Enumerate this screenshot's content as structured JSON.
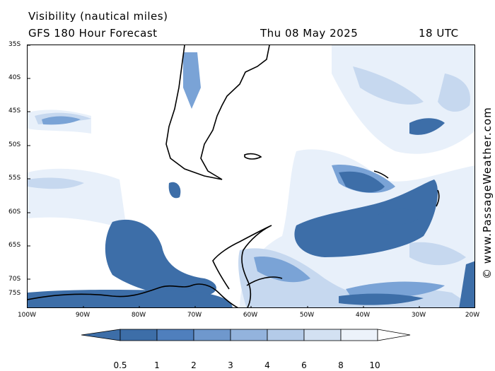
{
  "header": {
    "variable": "Visibility (nautical miles)",
    "model": "GFS 180 Hour Forecast",
    "date": "Thu 08 May 2025",
    "time": "18 UTC"
  },
  "credit": "© www.PassageWeather.com",
  "axes": {
    "lat_labels": [
      "35S",
      "40S",
      "45S",
      "50S",
      "55S",
      "60S",
      "65S",
      "70S",
      "75S"
    ],
    "lon_labels": [
      "100W",
      "90W",
      "80W",
      "70W",
      "60W",
      "50W",
      "40W",
      "30W",
      "20W"
    ]
  },
  "legend": {
    "labels": [
      "0.5",
      "1",
      "2",
      "3",
      "4",
      "6",
      "8",
      "10"
    ],
    "colors": [
      "#3d6ea8",
      "#4f7fbd",
      "#6f98cd",
      "#93b3dd",
      "#b4cbe9",
      "#d3e1f2",
      "#ecf2fa",
      "#ffffff"
    ]
  },
  "colors": {
    "dense": "#3d6ea8",
    "medium": "#7aa3d6",
    "light": "#c6d8ef",
    "faint": "#e8f0fa",
    "coast": "#000000"
  }
}
